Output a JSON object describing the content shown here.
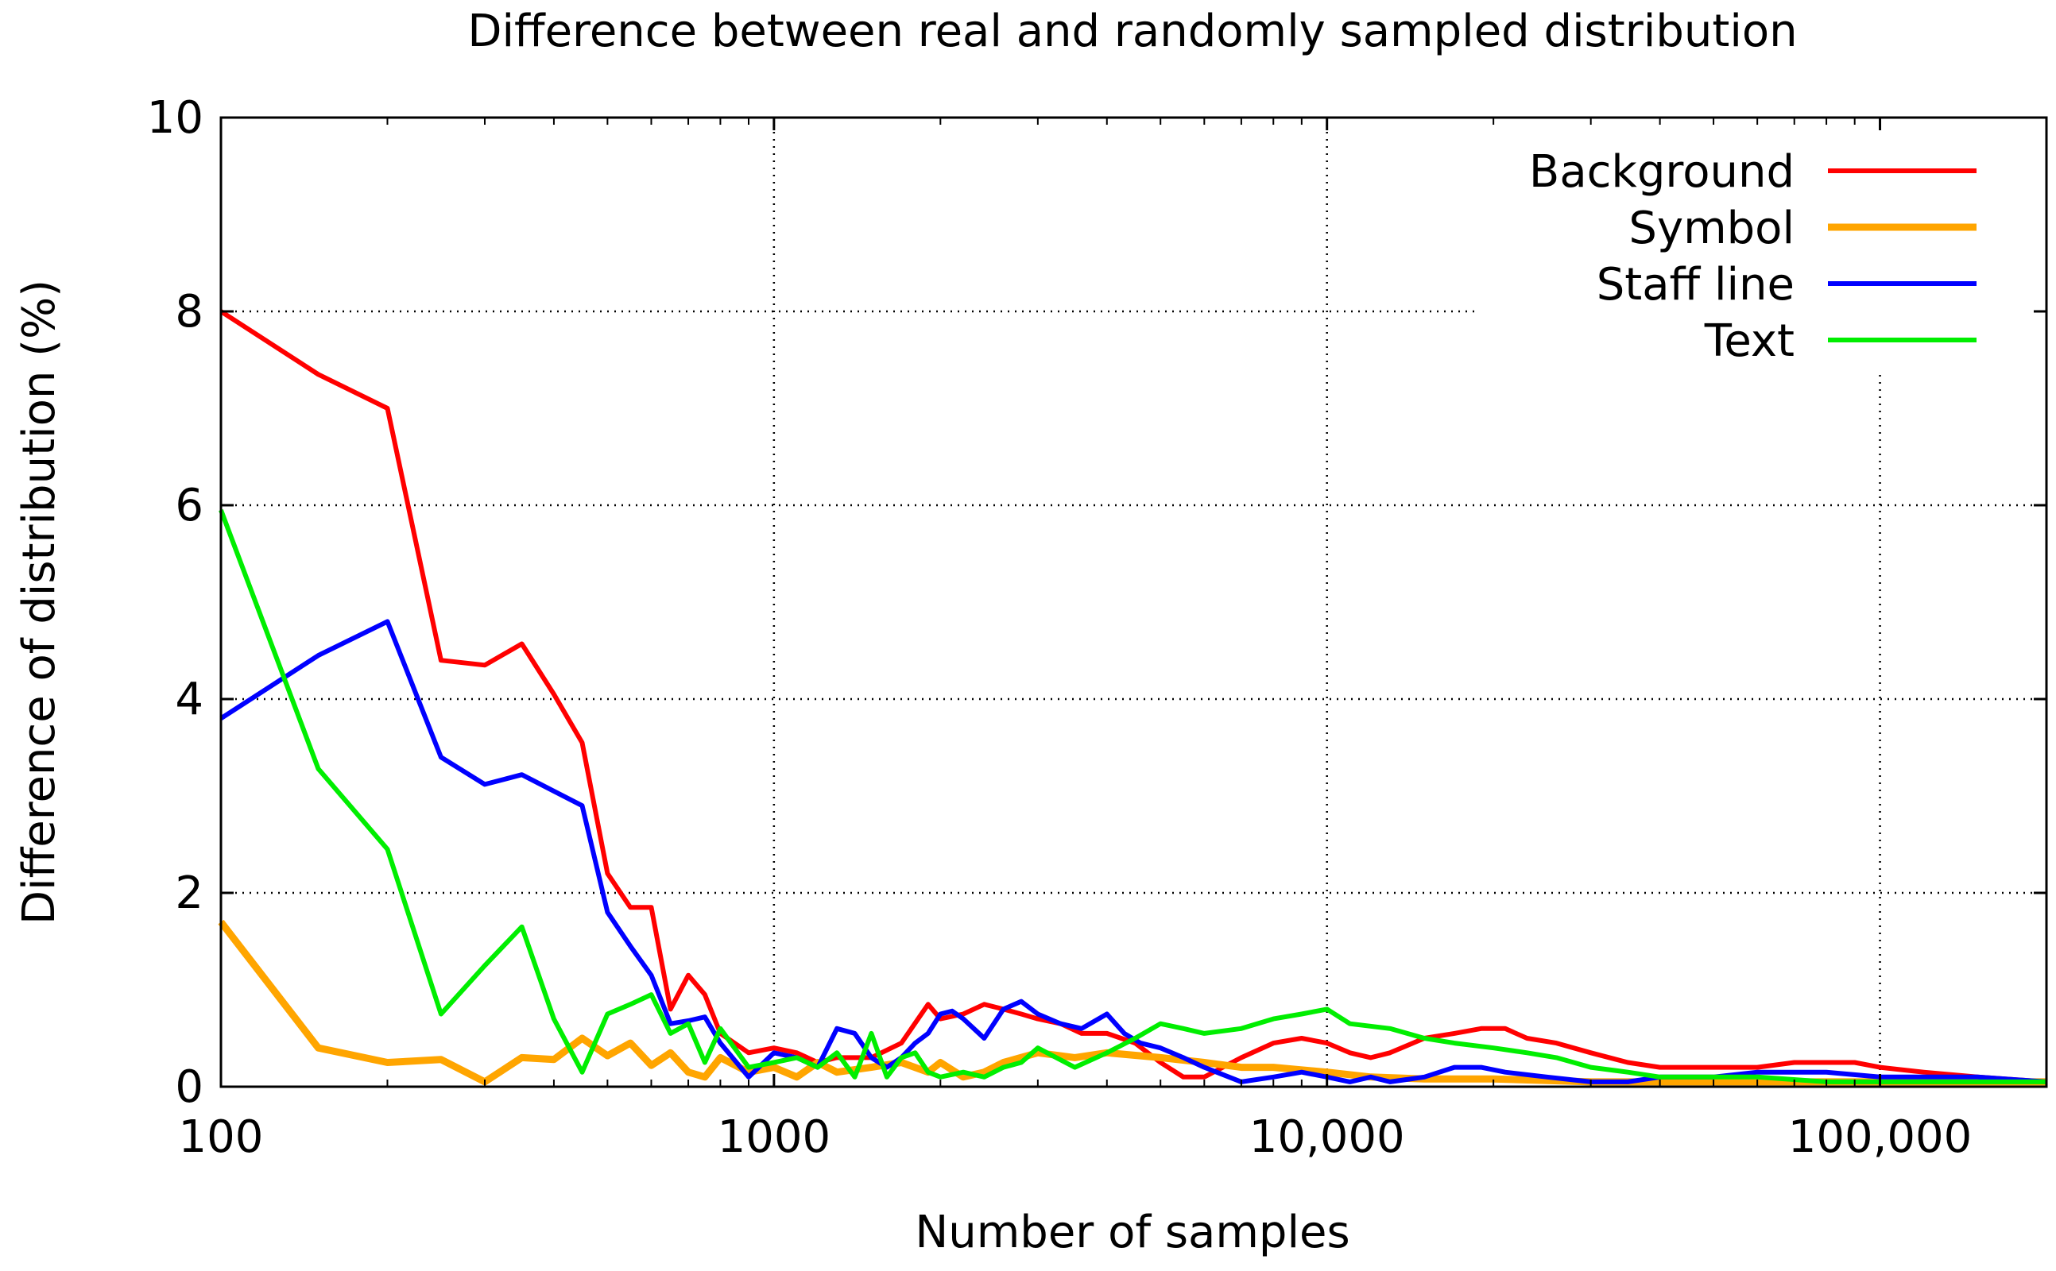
{
  "chart_data": {
    "type": "line",
    "title": "Difference between real and randomly sampled distribution",
    "xlabel": "Number of samples",
    "ylabel": "Difference of distribution (%)",
    "xscale": "log",
    "xlim": [
      100,
      200000
    ],
    "ylim": [
      0,
      10
    ],
    "grid": true,
    "legend_position": "top-right",
    "x_ticks": [
      {
        "value": 100,
        "label": "100"
      },
      {
        "value": 1000,
        "label": "1000"
      },
      {
        "value": 10000,
        "label": "10,000"
      },
      {
        "value": 100000,
        "label": "100,000"
      }
    ],
    "y_ticks": [
      {
        "value": 0,
        "label": "0"
      },
      {
        "value": 2,
        "label": "2"
      },
      {
        "value": 4,
        "label": "4"
      },
      {
        "value": 6,
        "label": "6"
      },
      {
        "value": 8,
        "label": "8"
      },
      {
        "value": 10,
        "label": "10"
      }
    ],
    "series": [
      {
        "name": "Background",
        "color": "#ff0000",
        "x": [
          100,
          150,
          200,
          250,
          300,
          350,
          400,
          450,
          500,
          550,
          600,
          650,
          700,
          750,
          800,
          900,
          1000,
          1100,
          1200,
          1300,
          1500,
          1700,
          1900,
          2000,
          2200,
          2400,
          2600,
          2800,
          3000,
          3300,
          3600,
          4000,
          4500,
          5000,
          5500,
          6000,
          7000,
          8000,
          9000,
          10000,
          11000,
          12000,
          13000,
          15000,
          17000,
          19000,
          21000,
          23000,
          26000,
          30000,
          35000,
          40000,
          50000,
          60000,
          70000,
          80000,
          90000,
          100000,
          120000,
          150000,
          200000
        ],
        "y": [
          8.0,
          7.35,
          7.0,
          4.4,
          4.35,
          4.57,
          4.05,
          3.55,
          2.2,
          1.85,
          1.85,
          0.8,
          1.15,
          0.95,
          0.55,
          0.35,
          0.4,
          0.35,
          0.25,
          0.3,
          0.3,
          0.45,
          0.85,
          0.7,
          0.75,
          0.85,
          0.8,
          0.75,
          0.7,
          0.65,
          0.55,
          0.55,
          0.45,
          0.25,
          0.1,
          0.1,
          0.3,
          0.45,
          0.5,
          0.45,
          0.35,
          0.3,
          0.35,
          0.5,
          0.55,
          0.6,
          0.6,
          0.5,
          0.45,
          0.35,
          0.25,
          0.2,
          0.2,
          0.2,
          0.25,
          0.25,
          0.25,
          0.2,
          0.15,
          0.1,
          0.05
        ]
      },
      {
        "name": "Symbol",
        "color": "#ffa500",
        "x": [
          100,
          150,
          200,
          250,
          300,
          350,
          400,
          450,
          500,
          550,
          600,
          650,
          700,
          750,
          800,
          900,
          1000,
          1100,
          1200,
          1300,
          1500,
          1700,
          1900,
          2000,
          2200,
          2400,
          2600,
          3000,
          3500,
          4000,
          5000,
          6000,
          7000,
          8000,
          10000,
          12000,
          15000,
          20000,
          30000,
          40000,
          60000,
          100000,
          150000,
          200000
        ],
        "y": [
          1.7,
          0.4,
          0.25,
          0.28,
          0.05,
          0.3,
          0.28,
          0.5,
          0.32,
          0.45,
          0.22,
          0.35,
          0.15,
          0.1,
          0.3,
          0.15,
          0.2,
          0.1,
          0.25,
          0.15,
          0.2,
          0.25,
          0.15,
          0.25,
          0.1,
          0.15,
          0.25,
          0.35,
          0.3,
          0.35,
          0.3,
          0.25,
          0.2,
          0.2,
          0.15,
          0.1,
          0.08,
          0.08,
          0.05,
          0.05,
          0.05,
          0.05,
          0.05,
          0.05
        ]
      },
      {
        "name": "Staff line",
        "color": "#0000ff",
        "x": [
          100,
          150,
          200,
          250,
          300,
          350,
          400,
          450,
          500,
          550,
          600,
          650,
          700,
          750,
          800,
          900,
          1000,
          1100,
          1200,
          1300,
          1400,
          1500,
          1600,
          1700,
          1800,
          1900,
          2000,
          2100,
          2200,
          2400,
          2600,
          2800,
          3000,
          3300,
          3600,
          4000,
          4300,
          4600,
          5000,
          5500,
          6000,
          7000,
          8000,
          9000,
          10000,
          11000,
          12000,
          13000,
          15000,
          17000,
          19000,
          21000,
          25000,
          30000,
          35000,
          40000,
          50000,
          60000,
          70000,
          80000,
          100000,
          150000,
          200000
        ],
        "y": [
          3.8,
          4.45,
          4.8,
          3.4,
          3.12,
          3.22,
          3.05,
          2.9,
          1.8,
          1.45,
          1.15,
          0.65,
          0.68,
          0.72,
          0.45,
          0.1,
          0.35,
          0.3,
          0.2,
          0.6,
          0.55,
          0.3,
          0.2,
          0.3,
          0.45,
          0.55,
          0.75,
          0.78,
          0.7,
          0.5,
          0.8,
          0.88,
          0.75,
          0.65,
          0.6,
          0.75,
          0.55,
          0.45,
          0.4,
          0.3,
          0.2,
          0.05,
          0.1,
          0.15,
          0.1,
          0.05,
          0.1,
          0.05,
          0.1,
          0.2,
          0.2,
          0.15,
          0.1,
          0.05,
          0.05,
          0.1,
          0.1,
          0.15,
          0.15,
          0.15,
          0.1,
          0.1,
          0.05
        ]
      },
      {
        "name": "Text",
        "color": "#00ee00",
        "x": [
          100,
          150,
          200,
          250,
          300,
          350,
          400,
          450,
          500,
          550,
          600,
          650,
          700,
          750,
          800,
          900,
          1000,
          1100,
          1200,
          1300,
          1400,
          1500,
          1600,
          1700,
          1800,
          1900,
          2000,
          2200,
          2400,
          2600,
          2800,
          3000,
          3500,
          4000,
          4500,
          5000,
          5500,
          6000,
          7000,
          8000,
          9000,
          10000,
          11000,
          13000,
          15000,
          17000,
          20000,
          23000,
          26000,
          30000,
          35000,
          40000,
          50000,
          60000,
          80000,
          100000,
          150000,
          200000
        ],
        "y": [
          5.95,
          3.28,
          2.45,
          0.75,
          1.25,
          1.65,
          0.7,
          0.15,
          0.75,
          0.85,
          0.95,
          0.55,
          0.65,
          0.25,
          0.6,
          0.2,
          0.25,
          0.3,
          0.2,
          0.35,
          0.1,
          0.55,
          0.1,
          0.3,
          0.35,
          0.15,
          0.1,
          0.15,
          0.1,
          0.2,
          0.25,
          0.4,
          0.2,
          0.35,
          0.5,
          0.65,
          0.6,
          0.55,
          0.6,
          0.7,
          0.75,
          0.8,
          0.65,
          0.6,
          0.5,
          0.45,
          0.4,
          0.35,
          0.3,
          0.2,
          0.15,
          0.1,
          0.1,
          0.1,
          0.05,
          0.05,
          0.05,
          0.05
        ]
      }
    ]
  }
}
